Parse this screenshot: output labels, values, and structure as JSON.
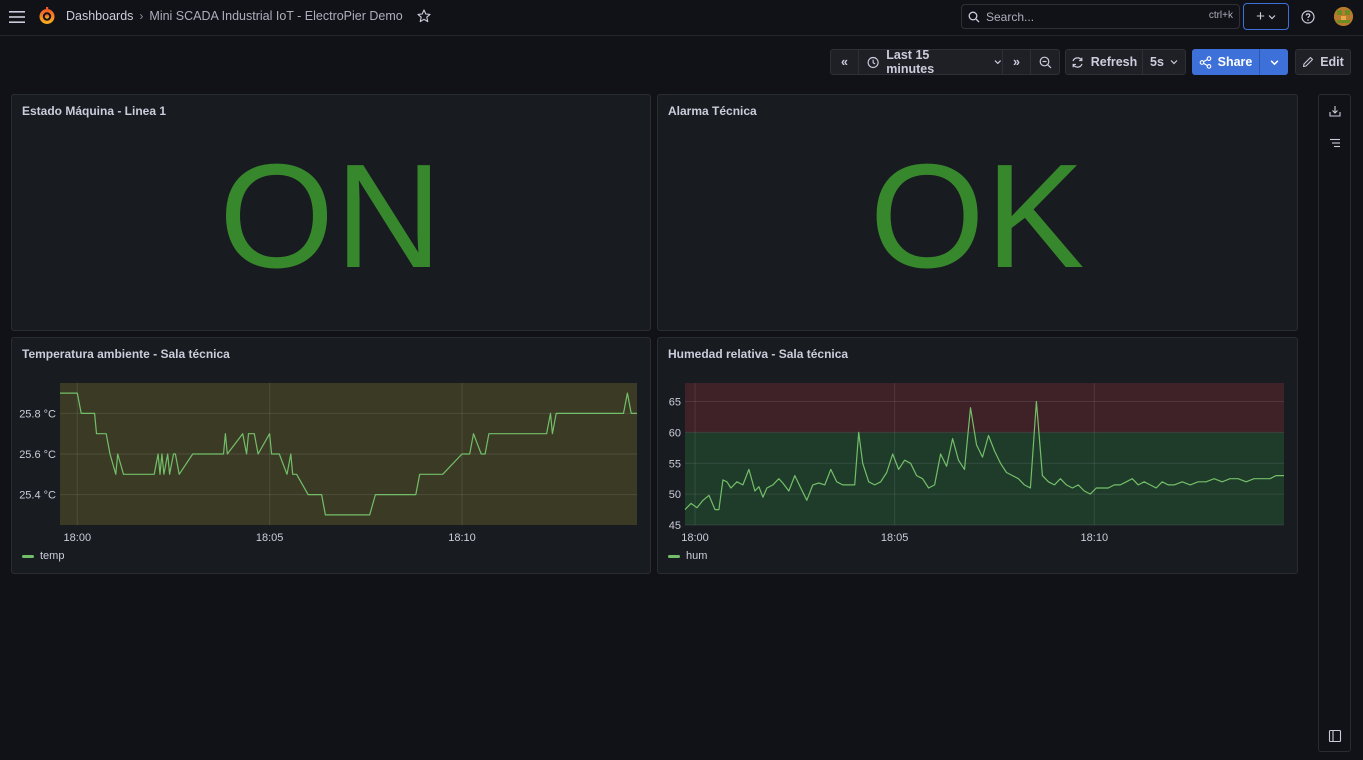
{
  "header": {
    "breadcrumb_root": "Dashboards",
    "breadcrumb_sep": "›",
    "dashboard_title": "Mini SCADA Industrial IoT - ElectroPier Demo",
    "search_placeholder": "Search...",
    "search_shortcut": "ctrl+k",
    "new_label": "+"
  },
  "toolbar": {
    "time_back_label": "«",
    "time_range": "Last 15 minutes",
    "time_forward_label": "»",
    "refresh_label": "Refresh",
    "refresh_interval": "5s",
    "share_label": "Share",
    "edit_label": "Edit"
  },
  "panels": {
    "estado": {
      "title": "Estado Máquina - Linea 1",
      "value": "ON",
      "color": "#37872d"
    },
    "alarma": {
      "title": "Alarma Técnica",
      "value": "OK",
      "color": "#37872d"
    },
    "temperatura": {
      "title": "Temperatura ambiente - Sala técnica",
      "legend": "temp"
    },
    "humedad": {
      "title": "Humedad relativa - Sala técnica",
      "legend": "hum"
    }
  },
  "colors": {
    "series": "#73bf69",
    "accent": "#3d71d9",
    "threshold_green": "#1f3b2a",
    "threshold_red": "#3e2227",
    "temp_fill": "#3b3b25"
  },
  "chart_data": [
    {
      "type": "line",
      "title": "Temperatura ambiente - Sala técnica",
      "x_ticks": [
        "18:00",
        "18:05",
        "18:10"
      ],
      "y_ticks": [
        "25.4 °C",
        "25.6 °C",
        "25.8 °C"
      ],
      "ylim": [
        25.25,
        25.95
      ],
      "xlim": [
        17.55,
        32.55
      ],
      "legend": [
        "temp"
      ],
      "series": [
        {
          "name": "temp",
          "x": [
            17.55,
            18.0,
            18.1,
            18.45,
            18.5,
            18.75,
            18.85,
            19.0,
            19.05,
            19.2,
            20.0,
            20.1,
            20.15,
            20.2,
            20.25,
            20.35,
            20.4,
            20.5,
            20.55,
            20.65,
            21.0,
            21.8,
            21.85,
            21.9,
            22.3,
            22.4,
            22.45,
            22.5,
            22.55,
            22.6,
            22.7,
            23.0,
            23.05,
            23.15,
            23.25,
            23.45,
            23.55,
            23.6,
            23.7,
            24.0,
            24.1,
            24.35,
            24.45,
            24.6,
            24.65,
            25.0,
            25.5,
            25.6,
            25.75,
            25.85,
            26.0,
            26.5,
            26.8,
            26.9,
            27.0,
            27.5,
            28.0,
            28.2,
            28.3,
            28.5,
            28.6,
            28.7,
            29.0,
            29.5,
            30.0,
            30.2,
            30.3,
            30.35,
            30.45,
            30.5,
            31.0,
            32.0,
            32.2,
            32.3,
            32.4,
            32.55
          ],
          "values": [
            25.9,
            25.9,
            25.8,
            25.8,
            25.7,
            25.7,
            25.6,
            25.5,
            25.6,
            25.5,
            25.5,
            25.6,
            25.5,
            25.6,
            25.5,
            25.6,
            25.5,
            25.6,
            25.6,
            25.5,
            25.6,
            25.6,
            25.7,
            25.6,
            25.7,
            25.6,
            25.7,
            25.7,
            25.7,
            25.7,
            25.6,
            25.7,
            25.6,
            25.6,
            25.6,
            25.5,
            25.6,
            25.5,
            25.5,
            25.4,
            25.4,
            25.4,
            25.3,
            25.3,
            25.3,
            25.3,
            25.3,
            25.3,
            25.4,
            25.4,
            25.4,
            25.4,
            25.4,
            25.5,
            25.5,
            25.5,
            25.6,
            25.6,
            25.7,
            25.6,
            25.6,
            25.7,
            25.7,
            25.7,
            25.7,
            25.7,
            25.8,
            25.7,
            25.8,
            25.8,
            25.8,
            25.8,
            25.8,
            25.9,
            25.8,
            25.8
          ]
        }
      ]
    },
    {
      "type": "line",
      "title": "Humedad relativa - Sala técnica",
      "x_ticks": [
        "18:00",
        "18:05",
        "18:10"
      ],
      "y_ticks": [
        "45",
        "50",
        "55",
        "60",
        "65"
      ],
      "ylim": [
        45,
        68
      ],
      "xlim": [
        17.75,
        32.75
      ],
      "legend": [
        "hum"
      ],
      "thresholds": [
        {
          "from": 45,
          "to": 60,
          "color": "green"
        },
        {
          "from": 60,
          "to": 68,
          "color": "red"
        }
      ],
      "series": [
        {
          "name": "hum",
          "x": [
            17.75,
            17.9,
            18.05,
            18.2,
            18.35,
            18.5,
            18.6,
            18.7,
            18.8,
            18.9,
            19.05,
            19.2,
            19.35,
            19.5,
            19.6,
            19.7,
            19.8,
            19.95,
            20.1,
            20.2,
            20.35,
            20.5,
            20.65,
            20.8,
            20.95,
            21.1,
            21.25,
            21.4,
            21.55,
            21.7,
            21.85,
            22.0,
            22.1,
            22.2,
            22.35,
            22.5,
            22.65,
            22.8,
            22.95,
            23.1,
            23.25,
            23.4,
            23.55,
            23.7,
            23.85,
            24.0,
            24.15,
            24.3,
            24.45,
            24.6,
            24.75,
            24.9,
            25.05,
            25.2,
            25.35,
            25.5,
            25.65,
            25.8,
            25.95,
            26.1,
            26.25,
            26.4,
            26.55,
            26.7,
            26.85,
            27.0,
            27.15,
            27.3,
            27.45,
            27.6,
            27.75,
            27.9,
            28.05,
            28.2,
            28.35,
            28.5,
            28.65,
            28.8,
            28.95,
            29.1,
            29.25,
            29.4,
            29.55,
            29.7,
            29.85,
            30.0,
            30.2,
            30.4,
            30.6,
            30.8,
            31.0,
            31.2,
            31.4,
            31.6,
            31.8,
            32.0,
            32.2,
            32.4,
            32.55,
            32.75
          ],
          "values": [
            47.5,
            48.5,
            47.8,
            49.0,
            49.8,
            47.5,
            47.5,
            52.3,
            52.0,
            51.0,
            52.0,
            51.5,
            54.0,
            50.5,
            51.2,
            49.5,
            51.0,
            51.5,
            52.5,
            51.8,
            50.5,
            53.0,
            51.0,
            49.0,
            51.5,
            51.8,
            51.5,
            54.0,
            52.0,
            51.5,
            51.5,
            51.5,
            60.0,
            55.0,
            52.0,
            51.5,
            52.0,
            53.5,
            56.5,
            54.0,
            55.5,
            55.0,
            53.0,
            52.5,
            51.0,
            51.5,
            56.5,
            54.5,
            59.0,
            55.5,
            54.0,
            64.0,
            58.0,
            56.0,
            59.5,
            57.0,
            55.0,
            53.5,
            53.0,
            52.5,
            51.5,
            51.0,
            65.0,
            53.0,
            52.0,
            51.5,
            52.5,
            51.5,
            51.0,
            51.5,
            50.5,
            50.0,
            51.0,
            51.0,
            51.0,
            51.5,
            51.5,
            52.0,
            52.5,
            51.5,
            52.0,
            51.5,
            51.0,
            52.0,
            51.5,
            51.5,
            52.0,
            51.5,
            52.0,
            52.0,
            52.5,
            52.0,
            52.5,
            52.5,
            52.0,
            52.5,
            52.5,
            52.5,
            53.0,
            53.0
          ]
        }
      ]
    }
  ]
}
